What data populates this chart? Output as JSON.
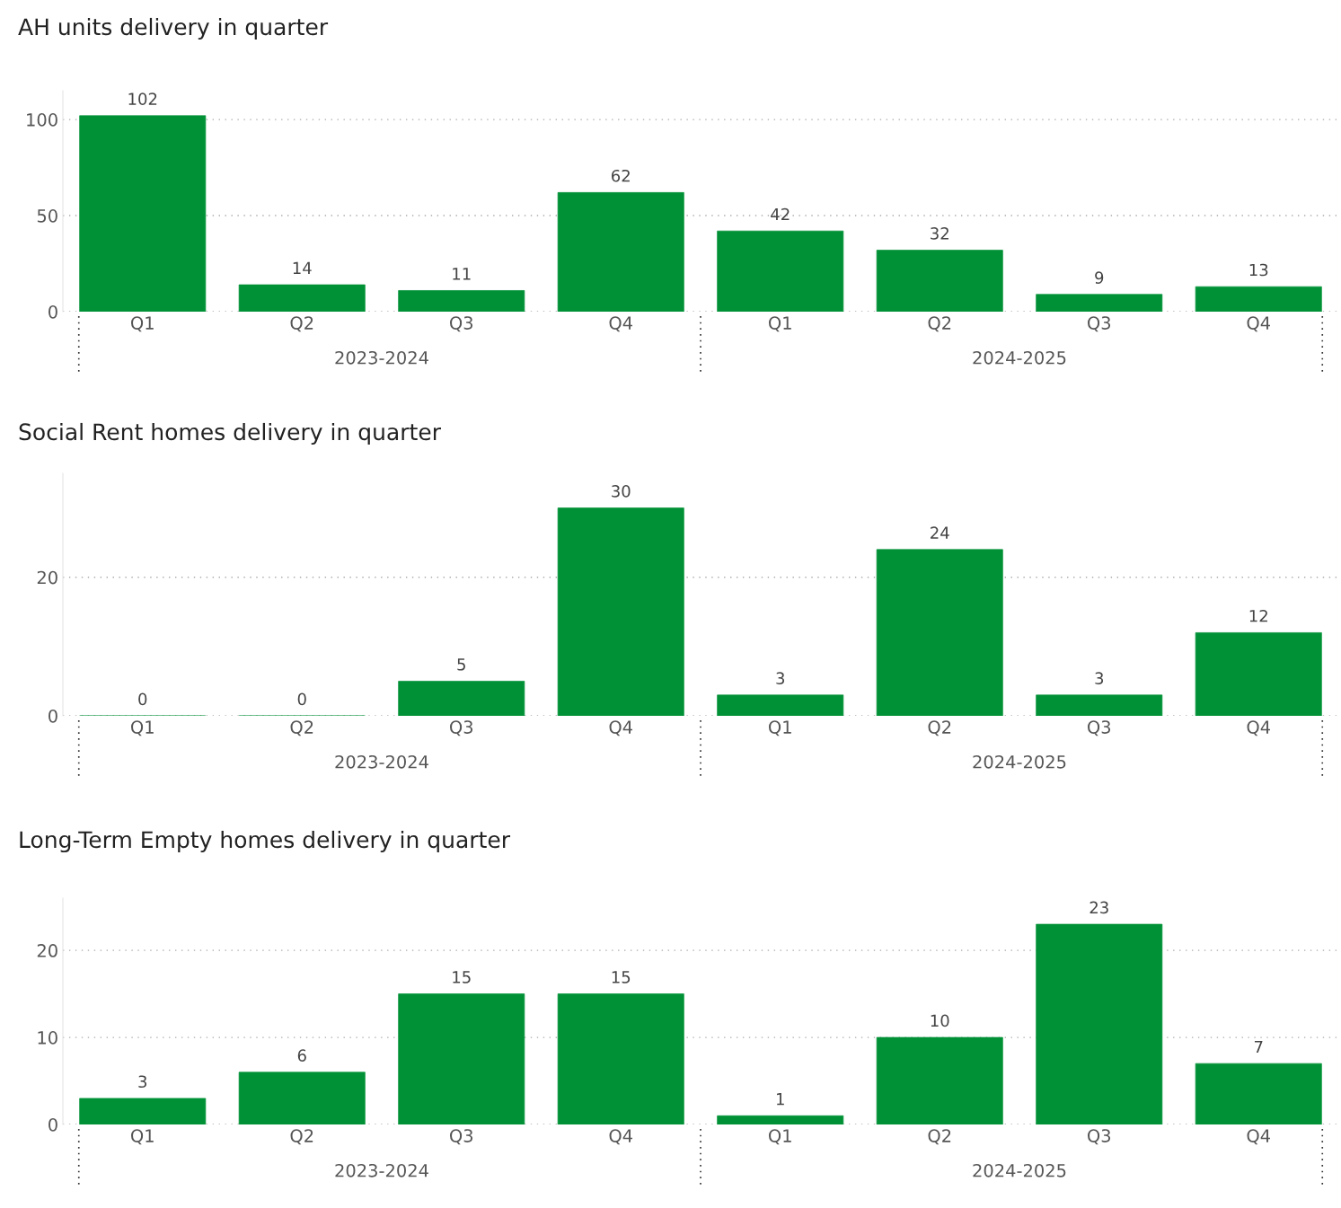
{
  "chart_data": [
    {
      "type": "bar",
      "title": "AH units delivery in quarter",
      "categories": [
        "Q1",
        "Q2",
        "Q3",
        "Q4",
        "Q1",
        "Q2",
        "Q3",
        "Q4"
      ],
      "values": [
        102,
        14,
        11,
        62,
        42,
        32,
        9,
        13
      ],
      "color": "#009136",
      "ylim": [
        0,
        115
      ],
      "yticks": [
        0,
        50,
        100
      ],
      "grid": "y",
      "data_labels": true,
      "legend": false,
      "annotations": [
        "2023-2024",
        "2024-2025"
      ]
    },
    {
      "type": "bar",
      "title": "Social Rent homes delivery in quarter",
      "categories": [
        "Q1",
        "Q2",
        "Q3",
        "Q4",
        "Q1",
        "Q2",
        "Q3",
        "Q4"
      ],
      "values": [
        0,
        0,
        5,
        30,
        3,
        24,
        3,
        12
      ],
      "color": "#009136",
      "ylim": [
        0,
        35
      ],
      "yticks": [
        0,
        20
      ],
      "grid": "y",
      "data_labels": true,
      "legend": false,
      "annotations": [
        "2023-2024",
        "2024-2025"
      ]
    },
    {
      "type": "bar",
      "title": "Long-Term Empty homes delivery in quarter",
      "categories": [
        "Q1",
        "Q2",
        "Q3",
        "Q4",
        "Q1",
        "Q2",
        "Q3",
        "Q4"
      ],
      "values": [
        3,
        6,
        15,
        15,
        1,
        10,
        23,
        7
      ],
      "color": "#009136",
      "ylim": [
        0,
        26
      ],
      "yticks": [
        0,
        10,
        20
      ],
      "grid": "y",
      "data_labels": true,
      "legend": false,
      "annotations": [
        "2023-2024",
        "2024-2025"
      ]
    }
  ]
}
